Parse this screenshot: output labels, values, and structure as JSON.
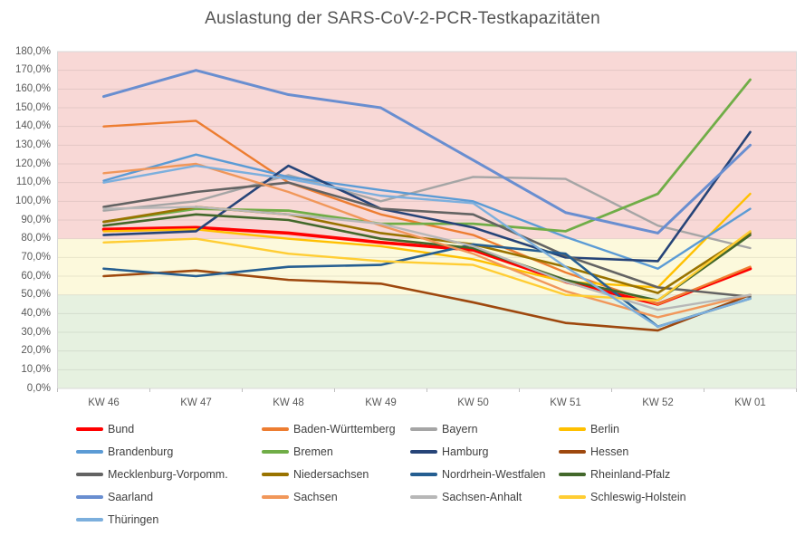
{
  "title": "Auslastung der SARS-CoV-2-PCR-Testkapazitäten",
  "chart_data": {
    "type": "line",
    "title": "Auslastung der SARS-CoV-2-PCR-Testkapazitäten",
    "categories": [
      "KW 46",
      "KW 47",
      "KW 48",
      "KW 49",
      "KW 50",
      "KW 51",
      "KW 52",
      "KW 01"
    ],
    "y_axis": {
      "min": 0,
      "max": 180,
      "step": 10,
      "tick_labels": [
        "0,0%",
        "10,0%",
        "20,0%",
        "30,0%",
        "40,0%",
        "50,0%",
        "60,0%",
        "70,0%",
        "80,0%",
        "90,0%",
        "100,0%",
        "110,0%",
        "120,0%",
        "130,0%",
        "140,0%",
        "150,0%",
        "160,0%",
        "170,0%",
        "180,0%"
      ]
    },
    "grid": true,
    "legend_position": "bottom",
    "background_bands": [
      {
        "from": 0,
        "to": 50,
        "color": "#E6F1E0",
        "meaning": "low utilization"
      },
      {
        "from": 50,
        "to": 80,
        "color": "#FCF9DC",
        "meaning": "medium utilization"
      },
      {
        "from": 80,
        "to": 180,
        "color": "#F8D8D6",
        "meaning": "high utilization"
      }
    ],
    "series": [
      {
        "name": "Bund",
        "color": "#FF0000",
        "width": 3.6,
        "values": [
          85,
          86,
          83,
          78,
          74,
          57,
          45,
          64
        ]
      },
      {
        "name": "Baden-Württemberg",
        "color": "#ED7D31",
        "width": 2.4,
        "values": [
          140,
          143,
          110,
          93,
          82,
          62,
          45,
          65
        ]
      },
      {
        "name": "Bayern",
        "color": "#A5A5A5",
        "width": 2.4,
        "values": [
          95,
          100,
          114,
          100,
          113,
          112,
          87,
          75
        ]
      },
      {
        "name": "Berlin",
        "color": "#FFC000",
        "width": 2.4,
        "values": [
          84,
          85,
          80,
          76,
          69,
          57,
          54,
          104
        ]
      },
      {
        "name": "Brandenburg",
        "color": "#5B9BD5",
        "width": 2.4,
        "values": [
          111,
          125,
          113,
          106,
          100,
          81,
          64,
          96
        ]
      },
      {
        "name": "Bremen",
        "color": "#70AD47",
        "width": 2.8,
        "values": [
          89,
          96,
          95,
          88,
          88,
          84,
          104,
          165
        ]
      },
      {
        "name": "Hamburg",
        "color": "#264478",
        "width": 2.6,
        "values": [
          82,
          84,
          119,
          96,
          86,
          70,
          68,
          137
        ]
      },
      {
        "name": "Hessen",
        "color": "#9E480E",
        "width": 2.6,
        "values": [
          60,
          63,
          58,
          56,
          46,
          35,
          31,
          50
        ]
      },
      {
        "name": "Mecklenburg-Vorpomm.",
        "color": "#636363",
        "width": 2.6,
        "values": [
          97,
          105,
          110,
          96,
          93,
          71,
          54,
          49
        ]
      },
      {
        "name": "Niedersachsen",
        "color": "#997300",
        "width": 2.6,
        "values": [
          89,
          97,
          93,
          83,
          77,
          65,
          51,
          83
        ]
      },
      {
        "name": "Nordrhein-Westfalen",
        "color": "#255E91",
        "width": 2.6,
        "values": [
          64,
          60,
          65,
          66,
          77,
          72,
          33,
          48
        ]
      },
      {
        "name": "Rheinland-Pfalz",
        "color": "#43682B",
        "width": 2.6,
        "values": [
          87,
          93,
          90,
          80,
          75,
          58,
          47,
          82
        ]
      },
      {
        "name": "Saarland",
        "color": "#698ED0",
        "width": 3.0,
        "values": [
          156,
          170,
          157,
          150,
          122,
          94,
          83,
          130
        ]
      },
      {
        "name": "Sachsen",
        "color": "#F1975A",
        "width": 2.4,
        "values": [
          115,
          120,
          105,
          87,
          72,
          52,
          38,
          50
        ]
      },
      {
        "name": "Sachsen-Anhalt",
        "color": "#B7B7B7",
        "width": 2.4,
        "values": [
          96,
          97,
          93,
          88,
          76,
          57,
          42,
          50
        ]
      },
      {
        "name": "Schleswig-Holstein",
        "color": "#FFCD33",
        "width": 2.4,
        "values": [
          78,
          80,
          72,
          68,
          66,
          50,
          47,
          84
        ]
      },
      {
        "name": "Thüringen",
        "color": "#7CAFDD",
        "width": 2.4,
        "values": [
          110,
          119,
          112,
          103,
          99,
          65,
          33,
          48
        ]
      }
    ]
  }
}
